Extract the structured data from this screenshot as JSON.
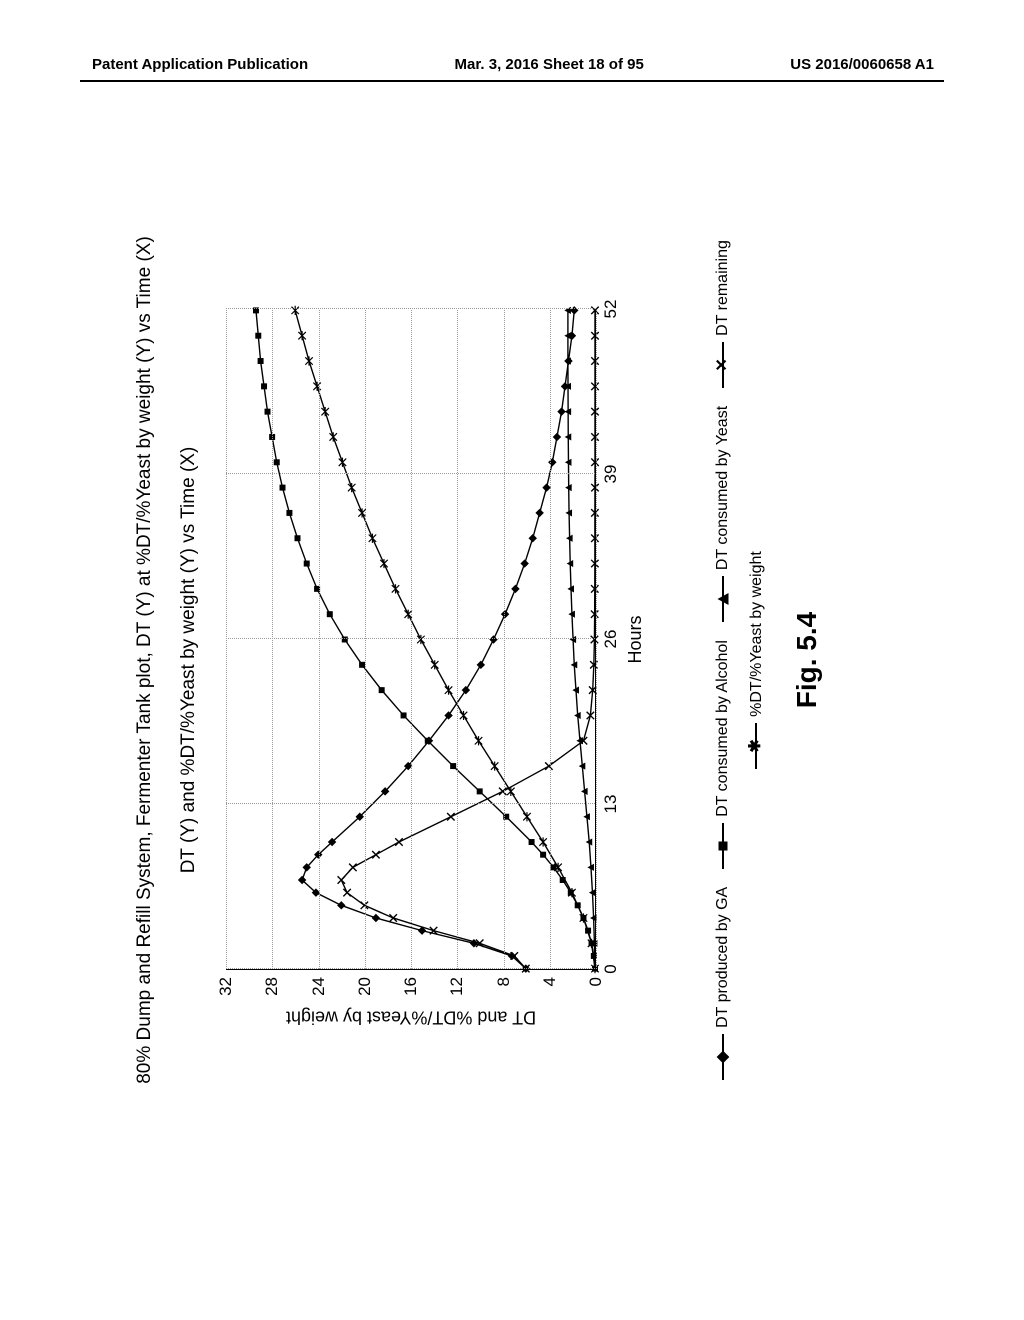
{
  "header": {
    "left": "Patent Application Publication",
    "center": "Mar. 3, 2016  Sheet 18 of 95",
    "right": "US 2016/0060658 A1"
  },
  "chart": {
    "type": "line",
    "title_line1": "80% Dump and Refill System, Fermenter Tank plot, DT (Y) at %DT/%Yeast by weight (Y) vs Time (X)",
    "title_line2": "DT (Y) and %DT/%Yeast by weight (Y) vs Time (X)",
    "x_axis": {
      "label": "Hours",
      "ticks": [
        0,
        13,
        26,
        39,
        52
      ],
      "lim": [
        0,
        52
      ]
    },
    "y_axis": {
      "label": "DT and %DT/%Yeast by weight",
      "ticks": [
        0,
        4,
        8,
        12,
        16,
        20,
        24,
        28,
        32
      ],
      "lim": [
        0,
        32
      ]
    },
    "grid_color": "#999999",
    "background_color": "#ffffff",
    "line_color": "#000000",
    "line_width": 1.4,
    "marker_size": 6,
    "series": [
      {
        "name": "DT produced by GA",
        "marker": "diamond",
        "points": [
          [
            0,
            6.0
          ],
          [
            1,
            7.2
          ],
          [
            2,
            10.5
          ],
          [
            3,
            15.0
          ],
          [
            4,
            19.0
          ],
          [
            5,
            22.0
          ],
          [
            6,
            24.2
          ],
          [
            7,
            25.4
          ],
          [
            8,
            25.0
          ],
          [
            9,
            24.0
          ],
          [
            10,
            22.8
          ],
          [
            12,
            20.4
          ],
          [
            14,
            18.2
          ],
          [
            16,
            16.2
          ],
          [
            18,
            14.4
          ],
          [
            20,
            12.7
          ],
          [
            22,
            11.2
          ],
          [
            24,
            9.9
          ],
          [
            26,
            8.8
          ],
          [
            28,
            7.8
          ],
          [
            30,
            6.9
          ],
          [
            32,
            6.1
          ],
          [
            34,
            5.4
          ],
          [
            36,
            4.8
          ],
          [
            38,
            4.2
          ],
          [
            40,
            3.7
          ],
          [
            42,
            3.3
          ],
          [
            44,
            2.9
          ],
          [
            46,
            2.6
          ],
          [
            48,
            2.3
          ],
          [
            50,
            2.0
          ],
          [
            52,
            1.8
          ]
        ]
      },
      {
        "name": "DT consumed by Alcohol",
        "marker": "square",
        "points": [
          [
            0,
            0
          ],
          [
            1,
            0.1
          ],
          [
            2,
            0.3
          ],
          [
            3,
            0.6
          ],
          [
            4,
            1.0
          ],
          [
            5,
            1.5
          ],
          [
            6,
            2.1
          ],
          [
            7,
            2.8
          ],
          [
            8,
            3.6
          ],
          [
            9,
            4.5
          ],
          [
            10,
            5.5
          ],
          [
            12,
            7.7
          ],
          [
            14,
            10.0
          ],
          [
            16,
            12.3
          ],
          [
            18,
            14.5
          ],
          [
            20,
            16.6
          ],
          [
            22,
            18.5
          ],
          [
            24,
            20.2
          ],
          [
            26,
            21.7
          ],
          [
            28,
            23.0
          ],
          [
            30,
            24.1
          ],
          [
            32,
            25.0
          ],
          [
            34,
            25.8
          ],
          [
            36,
            26.5
          ],
          [
            38,
            27.1
          ],
          [
            40,
            27.6
          ],
          [
            42,
            28.0
          ],
          [
            44,
            28.4
          ],
          [
            46,
            28.7
          ],
          [
            48,
            29.0
          ],
          [
            50,
            29.2
          ],
          [
            52,
            29.4
          ]
        ]
      },
      {
        "name": "DT consumed by Yeast",
        "marker": "triangle",
        "points": [
          [
            0,
            0
          ],
          [
            2,
            0.05
          ],
          [
            4,
            0.12
          ],
          [
            6,
            0.22
          ],
          [
            8,
            0.35
          ],
          [
            10,
            0.5
          ],
          [
            12,
            0.7
          ],
          [
            14,
            0.9
          ],
          [
            16,
            1.1
          ],
          [
            18,
            1.3
          ],
          [
            20,
            1.5
          ],
          [
            22,
            1.65
          ],
          [
            24,
            1.8
          ],
          [
            26,
            1.9
          ],
          [
            28,
            2.0
          ],
          [
            30,
            2.08
          ],
          [
            32,
            2.15
          ],
          [
            34,
            2.2
          ],
          [
            36,
            2.25
          ],
          [
            38,
            2.28
          ],
          [
            40,
            2.3
          ],
          [
            42,
            2.32
          ],
          [
            44,
            2.33
          ],
          [
            46,
            2.34
          ],
          [
            48,
            2.35
          ],
          [
            50,
            2.35
          ],
          [
            52,
            2.35
          ]
        ]
      },
      {
        "name": "DT remaining",
        "marker": "x",
        "points": [
          [
            0,
            6.0
          ],
          [
            1,
            7.0
          ],
          [
            2,
            10.0
          ],
          [
            3,
            14.0
          ],
          [
            4,
            17.5
          ],
          [
            5,
            20.0
          ],
          [
            6,
            21.5
          ],
          [
            7,
            22.0
          ],
          [
            8,
            21.0
          ],
          [
            9,
            19.0
          ],
          [
            10,
            17.0
          ],
          [
            12,
            12.5
          ],
          [
            14,
            8.0
          ],
          [
            16,
            4.0
          ],
          [
            18,
            1.0
          ],
          [
            20,
            0.4
          ],
          [
            22,
            0.2
          ],
          [
            24,
            0.1
          ],
          [
            26,
            0.05
          ],
          [
            28,
            0.03
          ],
          [
            30,
            0.02
          ],
          [
            32,
            0.01
          ],
          [
            34,
            0.01
          ],
          [
            36,
            0.01
          ],
          [
            38,
            0
          ],
          [
            40,
            0
          ],
          [
            42,
            0
          ],
          [
            44,
            0
          ],
          [
            46,
            0
          ],
          [
            48,
            0
          ],
          [
            50,
            0
          ],
          [
            52,
            0
          ]
        ]
      },
      {
        "name": "%DT/%Yeast by weight",
        "marker": "star",
        "points": [
          [
            0,
            0
          ],
          [
            2,
            0.3
          ],
          [
            4,
            1.0
          ],
          [
            6,
            2.0
          ],
          [
            8,
            3.2
          ],
          [
            10,
            4.5
          ],
          [
            12,
            5.9
          ],
          [
            14,
            7.3
          ],
          [
            16,
            8.7
          ],
          [
            18,
            10.1
          ],
          [
            20,
            11.4
          ],
          [
            22,
            12.7
          ],
          [
            24,
            13.9
          ],
          [
            26,
            15.1
          ],
          [
            28,
            16.2
          ],
          [
            30,
            17.3
          ],
          [
            32,
            18.3
          ],
          [
            34,
            19.3
          ],
          [
            36,
            20.2
          ],
          [
            38,
            21.1
          ],
          [
            40,
            21.9
          ],
          [
            42,
            22.7
          ],
          [
            44,
            23.4
          ],
          [
            46,
            24.1
          ],
          [
            48,
            24.8
          ],
          [
            50,
            25.4
          ],
          [
            52,
            26.0
          ]
        ]
      }
    ],
    "legend": {
      "row1": [
        {
          "label": "DT produced by GA",
          "marker": "diamond"
        },
        {
          "label": "DT consumed by Alcohol",
          "marker": "square"
        },
        {
          "label": "DT consumed by Yeast",
          "marker": "triangle"
        },
        {
          "label": "DT remaining",
          "marker": "x"
        }
      ],
      "row2": [
        {
          "label": "%DT/%Yeast by weight",
          "marker": "star"
        }
      ]
    },
    "figure_label": "Fig. 5.4"
  }
}
